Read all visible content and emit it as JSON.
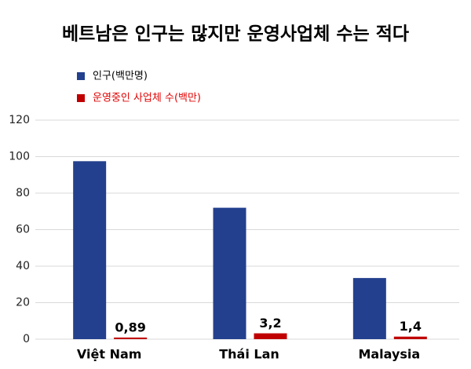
{
  "chart_data": {
    "type": "bar",
    "title": "베트남은 인구는 많지만 운영사업체 수는 적다",
    "categories": [
      "Việt Nam",
      "Thái Lan",
      "Malaysia"
    ],
    "series": [
      {
        "name": "인구(백만명)",
        "color": "#23408e",
        "values": [
          97.5,
          72,
          33.5
        ]
      },
      {
        "name": "운영중인 사업체 수(백만)",
        "color": "#c00000",
        "values": [
          0.89,
          3.2,
          1.4
        ],
        "value_labels": [
          "0,89",
          "3,2",
          "1,4"
        ]
      }
    ],
    "ylim": [
      0,
      120
    ],
    "yticks": [
      0,
      20,
      40,
      60,
      80,
      100,
      120
    ],
    "grid": true
  }
}
